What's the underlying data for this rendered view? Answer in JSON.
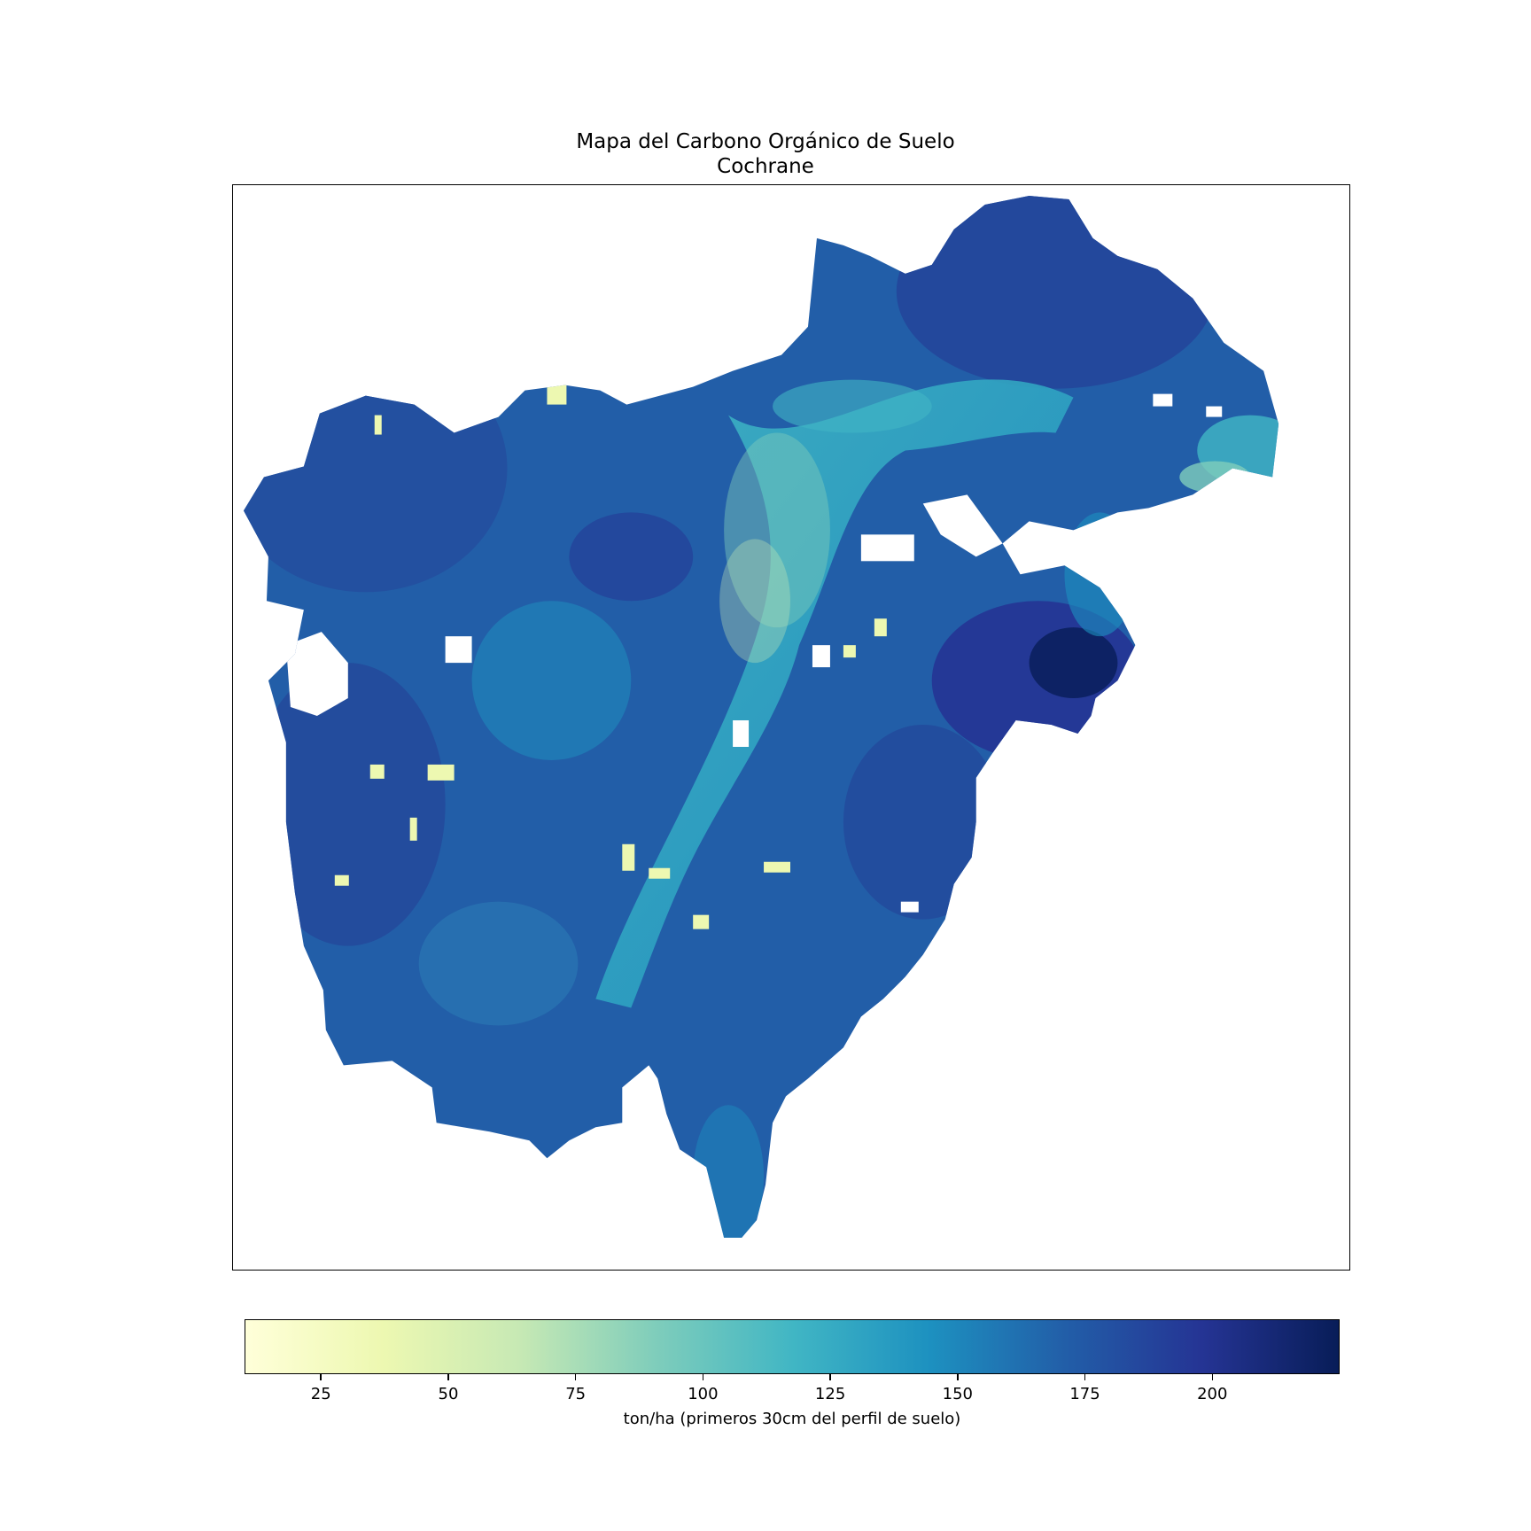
{
  "title": {
    "line1": "Mapa del Carbono Orgánico de Suelo",
    "line2": "Cochrane"
  },
  "map": {
    "region": "Cochrane",
    "colormap": "YlGnBu",
    "value_range": [
      10,
      225
    ],
    "no_data_color": "#ffffff"
  },
  "colorbar": {
    "label": "ton/ha (primeros 30cm del perfil de suelo)",
    "min": 10,
    "max": 225,
    "ticks": [
      25,
      50,
      75,
      100,
      125,
      150,
      175,
      200
    ],
    "stops": [
      "#ffffd9",
      "#edf8b1",
      "#c7e9b4",
      "#7fcdbb",
      "#41b6c4",
      "#1d91c0",
      "#225ea8",
      "#253494",
      "#081d58"
    ]
  }
}
